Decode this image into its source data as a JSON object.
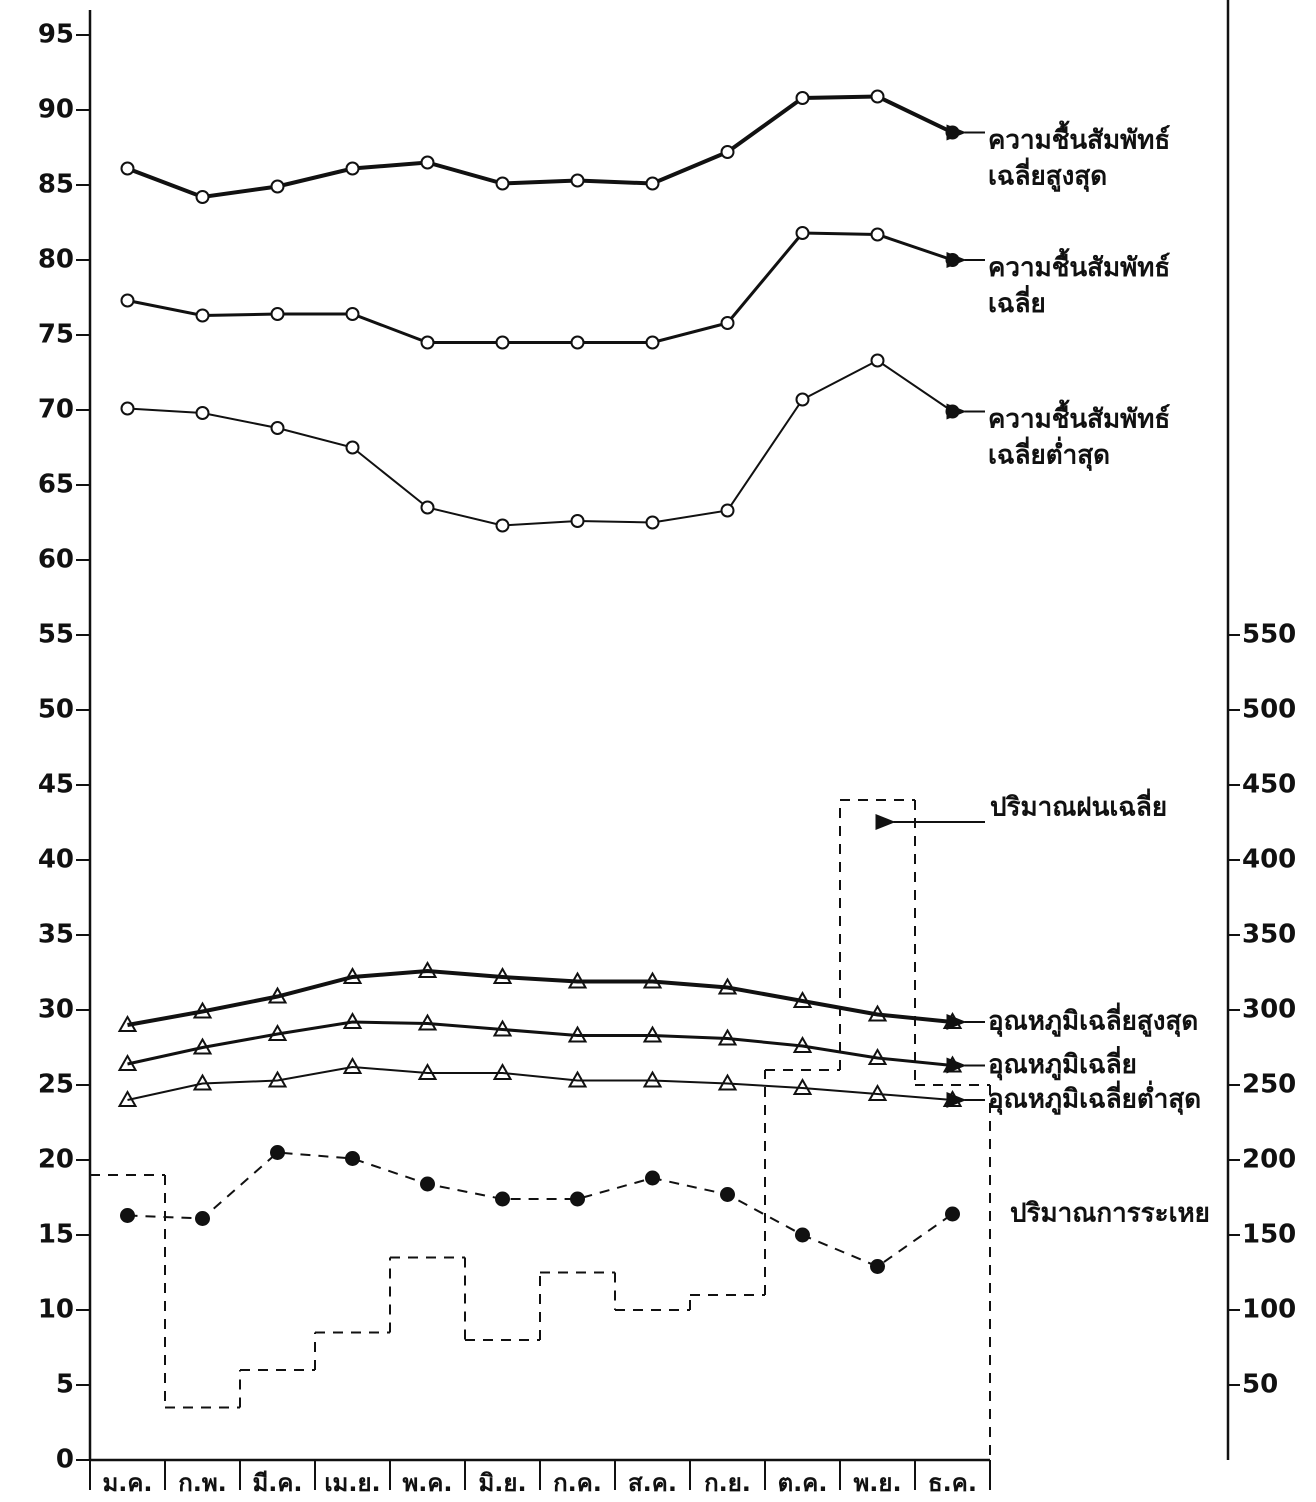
{
  "chart_data": {
    "type": "line",
    "categories": [
      "ม.ค.",
      "ก.พ.",
      "มี.ค.",
      "เม.ย.",
      "พ.ค.",
      "มิ.ย.",
      "ก.ค.",
      "ส.ค.",
      "ก.ย.",
      "ต.ค.",
      "พ.ย.",
      "ธ.ค."
    ],
    "ylim": [
      0,
      95
    ],
    "yticks": [
      0,
      5,
      10,
      15,
      20,
      25,
      30,
      35,
      40,
      45,
      50,
      55,
      60,
      65,
      70,
      75,
      80,
      85,
      90,
      95
    ],
    "y2lim": [
      0,
      950
    ],
    "y2ticks": [
      50,
      100,
      150,
      200,
      250,
      300,
      350,
      400,
      450,
      500,
      550
    ],
    "grid": false,
    "series": [
      {
        "name": "ความชื้นสัมพัทธ์ เฉลี่ยสูงสุด",
        "color": "#111111",
        "marker": "circle",
        "line_width": 4,
        "values": [
          86.1,
          84.2,
          84.9,
          86.1,
          86.5,
          85.1,
          85.3,
          85.1,
          87.2,
          90.8,
          90.9,
          88.5
        ]
      },
      {
        "name": "ความชื้นสัมพัทธ์ เฉลี่ย",
        "color": "#111111",
        "marker": "circle",
        "line_width": 3,
        "values": [
          77.3,
          76.3,
          76.4,
          76.4,
          74.5,
          74.5,
          74.5,
          74.5,
          75.8,
          81.8,
          81.7,
          80.0
        ]
      },
      {
        "name": "ความชื้นสัมพัทธ์ เฉลี่ยต่ำสุด",
        "color": "#111111",
        "marker": "circle",
        "line_width": 2,
        "values": [
          70.1,
          69.8,
          68.8,
          67.5,
          63.5,
          62.3,
          62.6,
          62.5,
          63.3,
          70.7,
          73.3,
          69.9
        ]
      },
      {
        "name": "อุณหภูมิเฉลี่ยสูงสุด",
        "color": "#111111",
        "marker": "triangle",
        "line_width": 4,
        "values": [
          29.0,
          29.9,
          30.9,
          32.2,
          32.6,
          32.2,
          31.9,
          31.9,
          31.5,
          30.6,
          29.7,
          29.2
        ]
      },
      {
        "name": "อุณหภูมิเฉลี่ย",
        "color": "#111111",
        "marker": "triangle",
        "line_width": 3,
        "values": [
          26.4,
          27.5,
          28.4,
          29.2,
          29.1,
          28.7,
          28.3,
          28.3,
          28.1,
          27.6,
          26.8,
          26.3
        ]
      },
      {
        "name": "อุณหภูมิเฉลี่ยต่ำสุด",
        "color": "#111111",
        "marker": "triangle",
        "line_width": 2,
        "values": [
          24.0,
          25.1,
          25.3,
          26.2,
          25.8,
          25.8,
          25.3,
          25.3,
          25.1,
          24.8,
          24.4,
          24.0
        ]
      },
      {
        "name": "ปริมาณการระเหย",
        "color": "#111111",
        "marker": "dot",
        "line_width": 2,
        "dash": true,
        "values": [
          16.3,
          16.1,
          20.5,
          20.1,
          18.4,
          17.4,
          17.4,
          18.8,
          17.7,
          15.0,
          12.9,
          16.4
        ]
      },
      {
        "name": "ปริมาณฝนเฉลี่ย",
        "color": "#111111",
        "style": "step",
        "axis": "y2",
        "line_width": 2,
        "dash": true,
        "values": [
          190,
          35,
          60,
          85,
          135,
          80,
          125,
          100,
          110,
          260,
          440,
          250
        ]
      }
    ]
  }
}
